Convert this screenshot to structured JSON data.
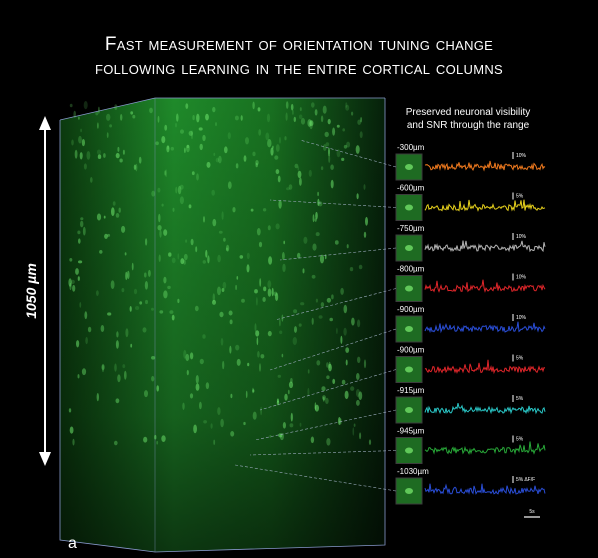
{
  "header": {
    "title_lines": [
      "Fast measurement of orientation tuning change",
      "following learning in the entire cortical columns"
    ]
  },
  "depth_axis": {
    "label": "1050 µm"
  },
  "caption_lines": [
    "Preserved neuronal visibility",
    "and SNR through the range"
  ],
  "rows": [
    {
      "depth": "-300µm",
      "scale": "10%",
      "color": "#f07a1e"
    },
    {
      "depth": "-600µm",
      "scale": "5%",
      "color": "#e8d21c"
    },
    {
      "depth": "-750µm",
      "scale": "10%",
      "color": "#b4b4b4"
    },
    {
      "depth": "-800µm",
      "scale": "10%",
      "color": "#e0262a"
    },
    {
      "depth": "-900µm",
      "scale": "10%",
      "color": "#2a4ed8"
    },
    {
      "depth": "-900µm",
      "scale": "5%",
      "color": "#e0262a"
    },
    {
      "depth": "-915µm",
      "scale": "5%",
      "color": "#2ac8c8"
    },
    {
      "depth": "-945µm",
      "scale": "5%",
      "color": "#28a838"
    },
    {
      "depth": "-1030µm",
      "scale": "5% ΔF/F",
      "color": "#2a4ed8"
    }
  ],
  "time_scale": "5s",
  "panel_label": "a"
}
